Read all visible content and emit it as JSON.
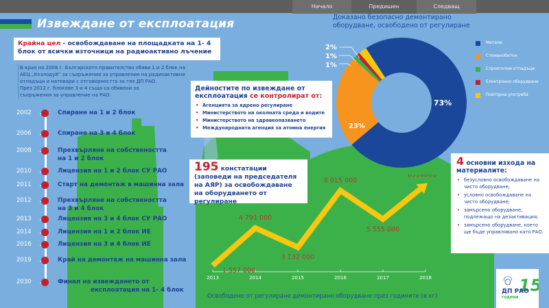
{
  "nav": {
    "home": "Начало",
    "previous": "Предишен",
    "next": "Следващ"
  },
  "page": {
    "title": "Извеждане от експлоатация"
  },
  "goal": {
    "highlight": "Крайна цел",
    "text": " - освобождаване на площадката на 1- 4 блок от всички източници на радиоактивно лъчение"
  },
  "intro": {
    "line1": "В края на 2008 г. Българското правителство обяви 1 и 2 блок на",
    "line2": "АЕЦ „Козлодуй” за съоръжения за управление на радиоактивни",
    "line3": "отпадъци и натовари с отговорността за тях ДП РАО.",
    "line4": "През 2012 г. блокове 3 и 4 също са обявени за",
    "line5": "съоръжения за управление на РАО."
  },
  "timeline": [
    {
      "year": "2002",
      "label": "Спиране на 1 и 2 блок",
      "label2": ""
    },
    {
      "year": "2006",
      "label": "Спиране на 3 и 4 блок",
      "label2": ""
    },
    {
      "year": "2008",
      "label": "Прехвърляне на собствеността",
      "label2": "на 1 и 2 блок"
    },
    {
      "year": "2010",
      "label": "Лицензия на 1 и 2 блок СУ РАО",
      "label2": ""
    },
    {
      "year": "2011",
      "label": "Старт на демонтаж в машинна зала",
      "label2": ""
    },
    {
      "year": "2012",
      "label": "Прехвърляне на собствеността",
      "label2": "на 3 и 4 блок"
    },
    {
      "year": "2013",
      "label": "Лицензия на 3 и 4 блок СУ РАО",
      "label2": ""
    },
    {
      "year": "2014",
      "label": "Лицензия на 1 и 2 блок ИЕ",
      "label2": ""
    },
    {
      "year": "2016",
      "label": "Лицензия на 3 и 4 блок ИЕ",
      "label2": ""
    },
    {
      "year": "2019",
      "label": "Край на демонтаж на машинна зала",
      "label2": ""
    },
    {
      "year": "2030",
      "label": "Финал на извеждането от",
      "label2": "експлоатация на 1- 4 блок"
    }
  ],
  "controls": {
    "title_part1": "Дейностите по извеждане от експлоатация ",
    "title_highlight": "се контролират от:",
    "items": [
      "Агенцията за ядрено регулиране",
      "Министерството на околната среда и водите",
      "Министерството на здравеопазването",
      "Международната агенция за атомна енергия"
    ]
  },
  "stat": {
    "number": "195",
    "text1": " констатации",
    "text2": "(заповеди на председателя на АЯР) за освобождаване на оборудването от регулиране"
  },
  "outcomes": {
    "number": "4",
    "title": " основни изхода на материалите:",
    "items": [
      "безусловно освобождаване на чисто оборудване;",
      "условно освобождаване на чисто оборудване;",
      "замърсено оборудване, подлежащо на дезактивация;",
      "замърсено оборудване, което ще бъде управлявано като РАО."
    ]
  },
  "logo": {
    "name": "ДП РАО",
    "years": "15",
    "subtitle": "ГОДИНИ"
  },
  "colors": {
    "background": "#7aaede",
    "green": "#3cb14a",
    "navy": "#1d4193",
    "red": "#c3202e",
    "yellow": "#f9c80e",
    "orange": "#f7941d",
    "pie_blue": "#1b479b"
  },
  "chart_data": [
    {
      "type": "pie",
      "title": "Доказано безопасно демонтирано оборудване, освободено от регулиране",
      "donut": true,
      "categories": [
        "Метали",
        "Стоманобетон",
        "Строителни отпадъци",
        "Електронно оборудване",
        "Повторна употреба"
      ],
      "values": [
        73,
        23,
        1,
        1,
        2
      ],
      "labels": [
        "73%",
        "23%",
        "1%",
        "1%",
        "2%"
      ],
      "colors": [
        "#1b479b",
        "#f7941d",
        "#3cb14a",
        "#c3202e",
        "#f9c80e"
      ],
      "legend_position": "right"
    },
    {
      "type": "line",
      "title": "Освободено от регулиране демонтирано оборудване през годините (в кг)",
      "xlabel": "",
      "ylabel": "",
      "x": [
        "2013",
        "2014",
        "2015",
        "2016",
        "2017",
        "2018"
      ],
      "values": [
        1557000,
        4791000,
        3132000,
        8015000,
        5555000,
        8510000
      ],
      "labels": [
        "1 557 000",
        "4 791 000",
        "3 132 000",
        "8 015 000",
        "5 555 000",
        "8510000"
      ],
      "grid": false,
      "color": "#f9c80e"
    }
  ]
}
